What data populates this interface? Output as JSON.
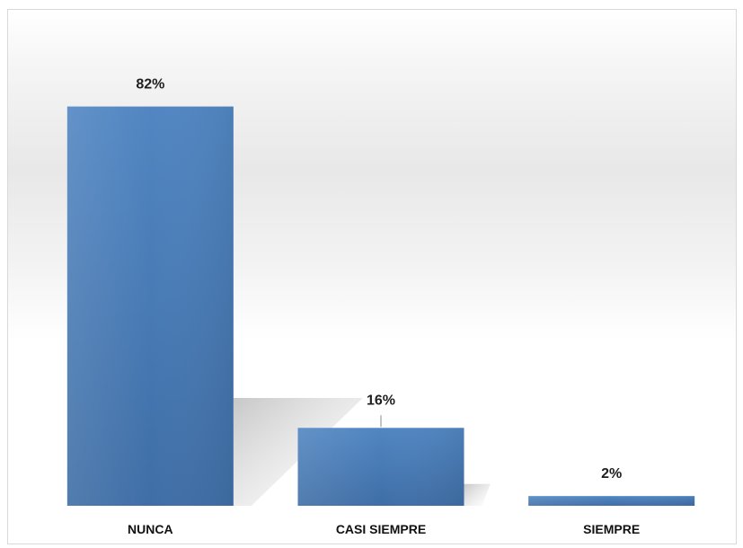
{
  "chart_data": {
    "type": "bar",
    "categories": [
      "NUNCA",
      "CASI SIEMPRE",
      "SIEMPRE"
    ],
    "values": [
      82,
      16,
      2
    ],
    "data_labels": [
      "82%",
      "16%",
      "2%"
    ],
    "title": "",
    "xlabel": "",
    "ylabel": "",
    "ylim": [
      0,
      100
    ],
    "grid": false,
    "legend": "none",
    "bar_color": "#4a7ebb"
  }
}
